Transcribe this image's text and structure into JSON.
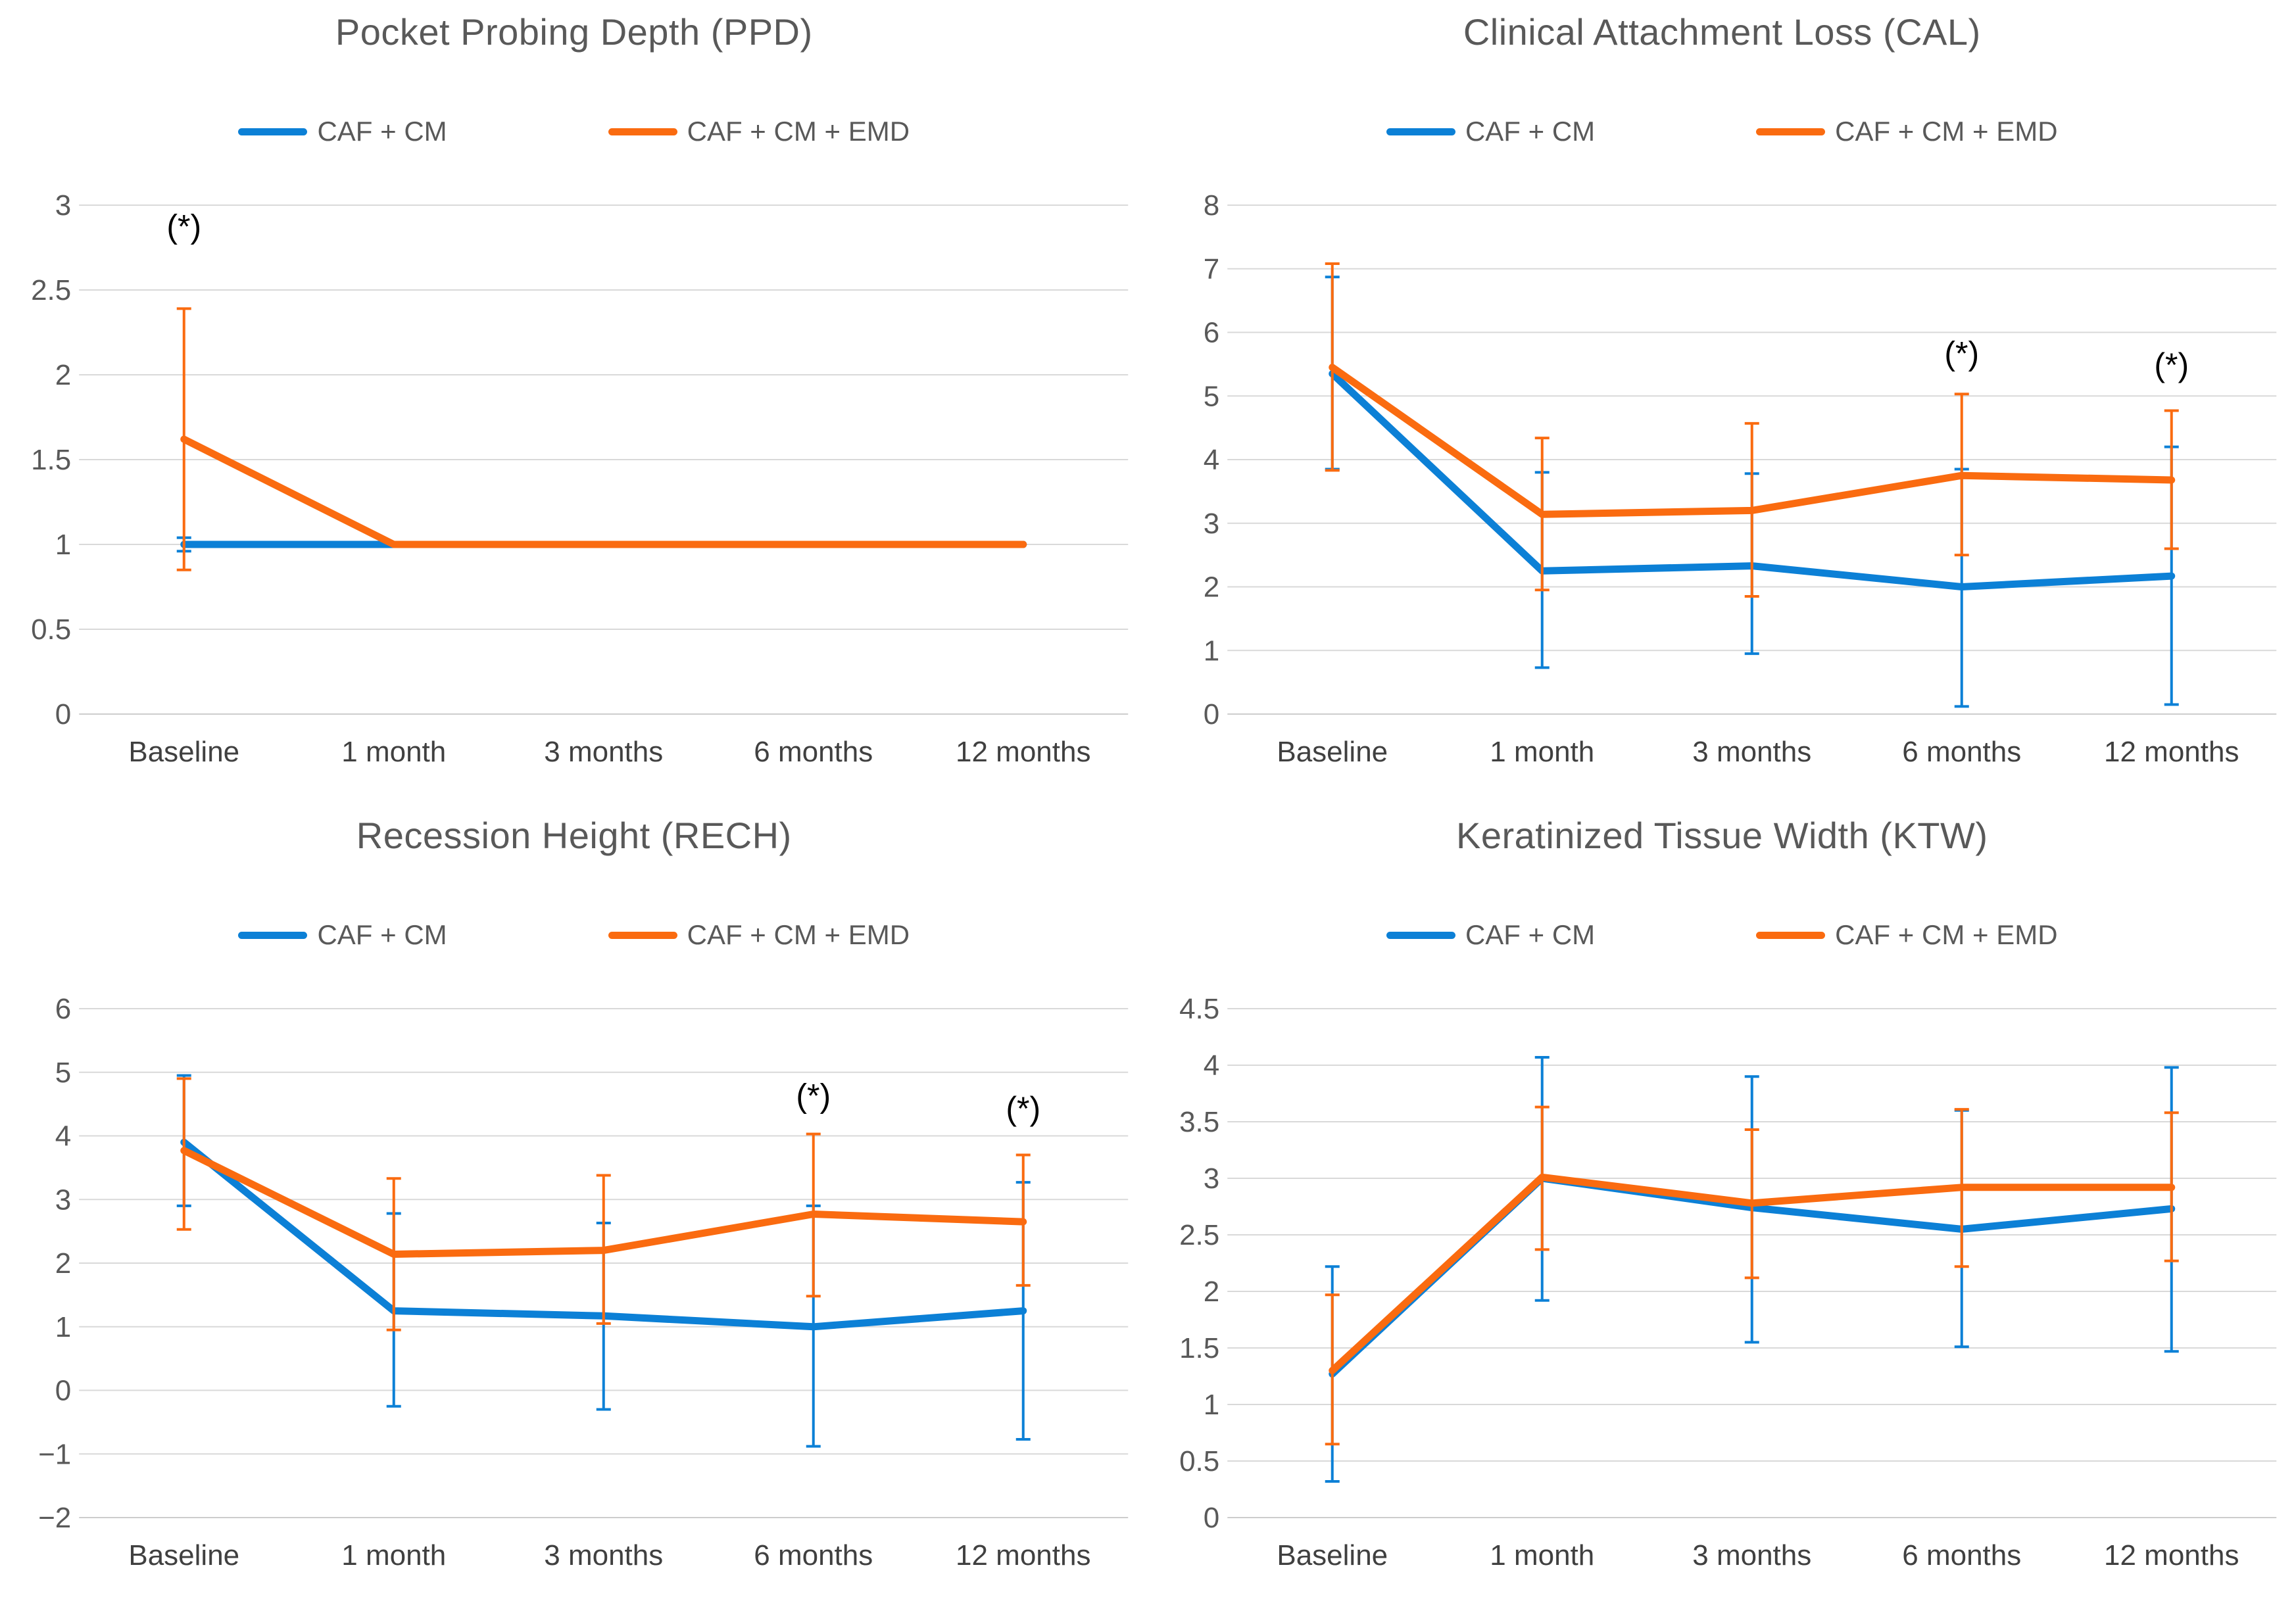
{
  "colors": {
    "series_blue": "#0C80D6",
    "series_orange": "#FA6B10",
    "title": "#595959",
    "y_tick_label": "#595959",
    "x_tick_label": "#404040",
    "gridline": "#D9D9D9",
    "baseline_gridline": "#CDCDCD",
    "annotation": "#000000",
    "background": "#FFFFFF"
  },
  "chart_data": [
    {
      "id": "ppd",
      "type": "line",
      "title": "Pocket Probing Depth (PPD)",
      "categories": [
        "Baseline",
        "1 month",
        "3 months",
        "6 months",
        "12 months"
      ],
      "ylim": [
        0,
        3
      ],
      "yticks": [
        0,
        0.5,
        1,
        1.5,
        2,
        2.5,
        3
      ],
      "grid": true,
      "legend_position": "top",
      "series": [
        {
          "name": "CAF + CM",
          "color": "#0C80D6",
          "values": [
            1,
            1,
            1,
            1,
            1
          ],
          "error_bars": [
            [
              0.96,
              1.04
            ],
            null,
            null,
            null,
            null
          ]
        },
        {
          "name": "CAF + CM + EMD",
          "color": "#FA6B10",
          "values": [
            1.62,
            1,
            1,
            1,
            1
          ],
          "error_bars": [
            [
              0.85,
              2.39
            ],
            null,
            null,
            null,
            null
          ]
        }
      ],
      "annotations": [
        {
          "category_index": 0,
          "y": 2.87,
          "label": "(*)"
        }
      ]
    },
    {
      "id": "cal",
      "type": "line",
      "title": "Clinical Attachment Loss (CAL)",
      "categories": [
        "Baseline",
        "1 month",
        "3 months",
        "6 months",
        "12 months"
      ],
      "ylim": [
        0,
        8
      ],
      "yticks": [
        0,
        1,
        2,
        3,
        4,
        5,
        6,
        7,
        8
      ],
      "grid": true,
      "legend_position": "top",
      "series": [
        {
          "name": "CAF + CM",
          "color": "#0C80D6",
          "values": [
            5.35,
            2.25,
            2.33,
            2.0,
            2.17
          ],
          "error_bars": [
            [
              3.85,
              6.87
            ],
            [
              0.73,
              3.8
            ],
            [
              0.95,
              3.78
            ],
            [
              0.12,
              3.85
            ],
            [
              0.15,
              4.2
            ]
          ]
        },
        {
          "name": "CAF + CM + EMD",
          "color": "#FA6B10",
          "values": [
            5.45,
            3.14,
            3.2,
            3.75,
            3.68
          ],
          "error_bars": [
            [
              3.83,
              7.08
            ],
            [
              1.95,
              4.34
            ],
            [
              1.85,
              4.57
            ],
            [
              2.5,
              5.03
            ],
            [
              2.6,
              4.77
            ]
          ]
        }
      ],
      "annotations": [
        {
          "category_index": 3,
          "y": 5.66,
          "label": "(*)"
        },
        {
          "category_index": 4,
          "y": 5.48,
          "label": "(*)"
        }
      ]
    },
    {
      "id": "rech",
      "type": "line",
      "title": "Recession Height (RECH)",
      "categories": [
        "Baseline",
        "1 month",
        "3 months",
        "6 months",
        "12 months"
      ],
      "ylim": [
        -2,
        6
      ],
      "yticks": [
        -2,
        -1,
        0,
        1,
        2,
        3,
        4,
        5,
        6
      ],
      "grid": true,
      "legend_position": "top",
      "series": [
        {
          "name": "CAF + CM",
          "color": "#0C80D6",
          "values": [
            3.9,
            1.25,
            1.17,
            1.0,
            1.25
          ],
          "error_bars": [
            [
              2.9,
              4.95
            ],
            [
              -0.25,
              2.78
            ],
            [
              -0.3,
              2.63
            ],
            [
              -0.88,
              2.9
            ],
            [
              -0.77,
              3.27
            ]
          ]
        },
        {
          "name": "CAF + CM + EMD",
          "color": "#FA6B10",
          "values": [
            3.77,
            2.14,
            2.2,
            2.77,
            2.65
          ],
          "error_bars": [
            [
              2.53,
              4.9
            ],
            [
              0.95,
              3.33
            ],
            [
              1.05,
              3.38
            ],
            [
              1.48,
              4.03
            ],
            [
              1.65,
              3.7
            ]
          ]
        }
      ],
      "annotations": [
        {
          "category_index": 3,
          "y": 4.62,
          "label": "(*)"
        },
        {
          "category_index": 4,
          "y": 4.42,
          "label": "(*)"
        }
      ]
    },
    {
      "id": "ktw",
      "type": "line",
      "title": "Keratinized Tissue Width (KTW)",
      "categories": [
        "Baseline",
        "1 month",
        "3 months",
        "6 months",
        "12 months"
      ],
      "ylim": [
        0,
        4.5
      ],
      "yticks": [
        0,
        0.5,
        1,
        1.5,
        2,
        2.5,
        3,
        3.5,
        4,
        4.5
      ],
      "grid": true,
      "legend_position": "top",
      "series": [
        {
          "name": "CAF + CM",
          "color": "#0C80D6",
          "values": [
            1.27,
            3.0,
            2.74,
            2.55,
            2.73
          ],
          "error_bars": [
            [
              0.32,
              2.22
            ],
            [
              1.92,
              4.07
            ],
            [
              1.55,
              3.9
            ],
            [
              1.51,
              3.6
            ],
            [
              1.47,
              3.98
            ]
          ]
        },
        {
          "name": "CAF + CM + EMD",
          "color": "#FA6B10",
          "values": [
            1.3,
            3.01,
            2.78,
            2.92,
            2.92
          ],
          "error_bars": [
            [
              0.65,
              1.97
            ],
            [
              2.37,
              3.63
            ],
            [
              2.12,
              3.43
            ],
            [
              2.22,
              3.61
            ],
            [
              2.27,
              3.58
            ]
          ]
        }
      ],
      "annotations": []
    }
  ]
}
